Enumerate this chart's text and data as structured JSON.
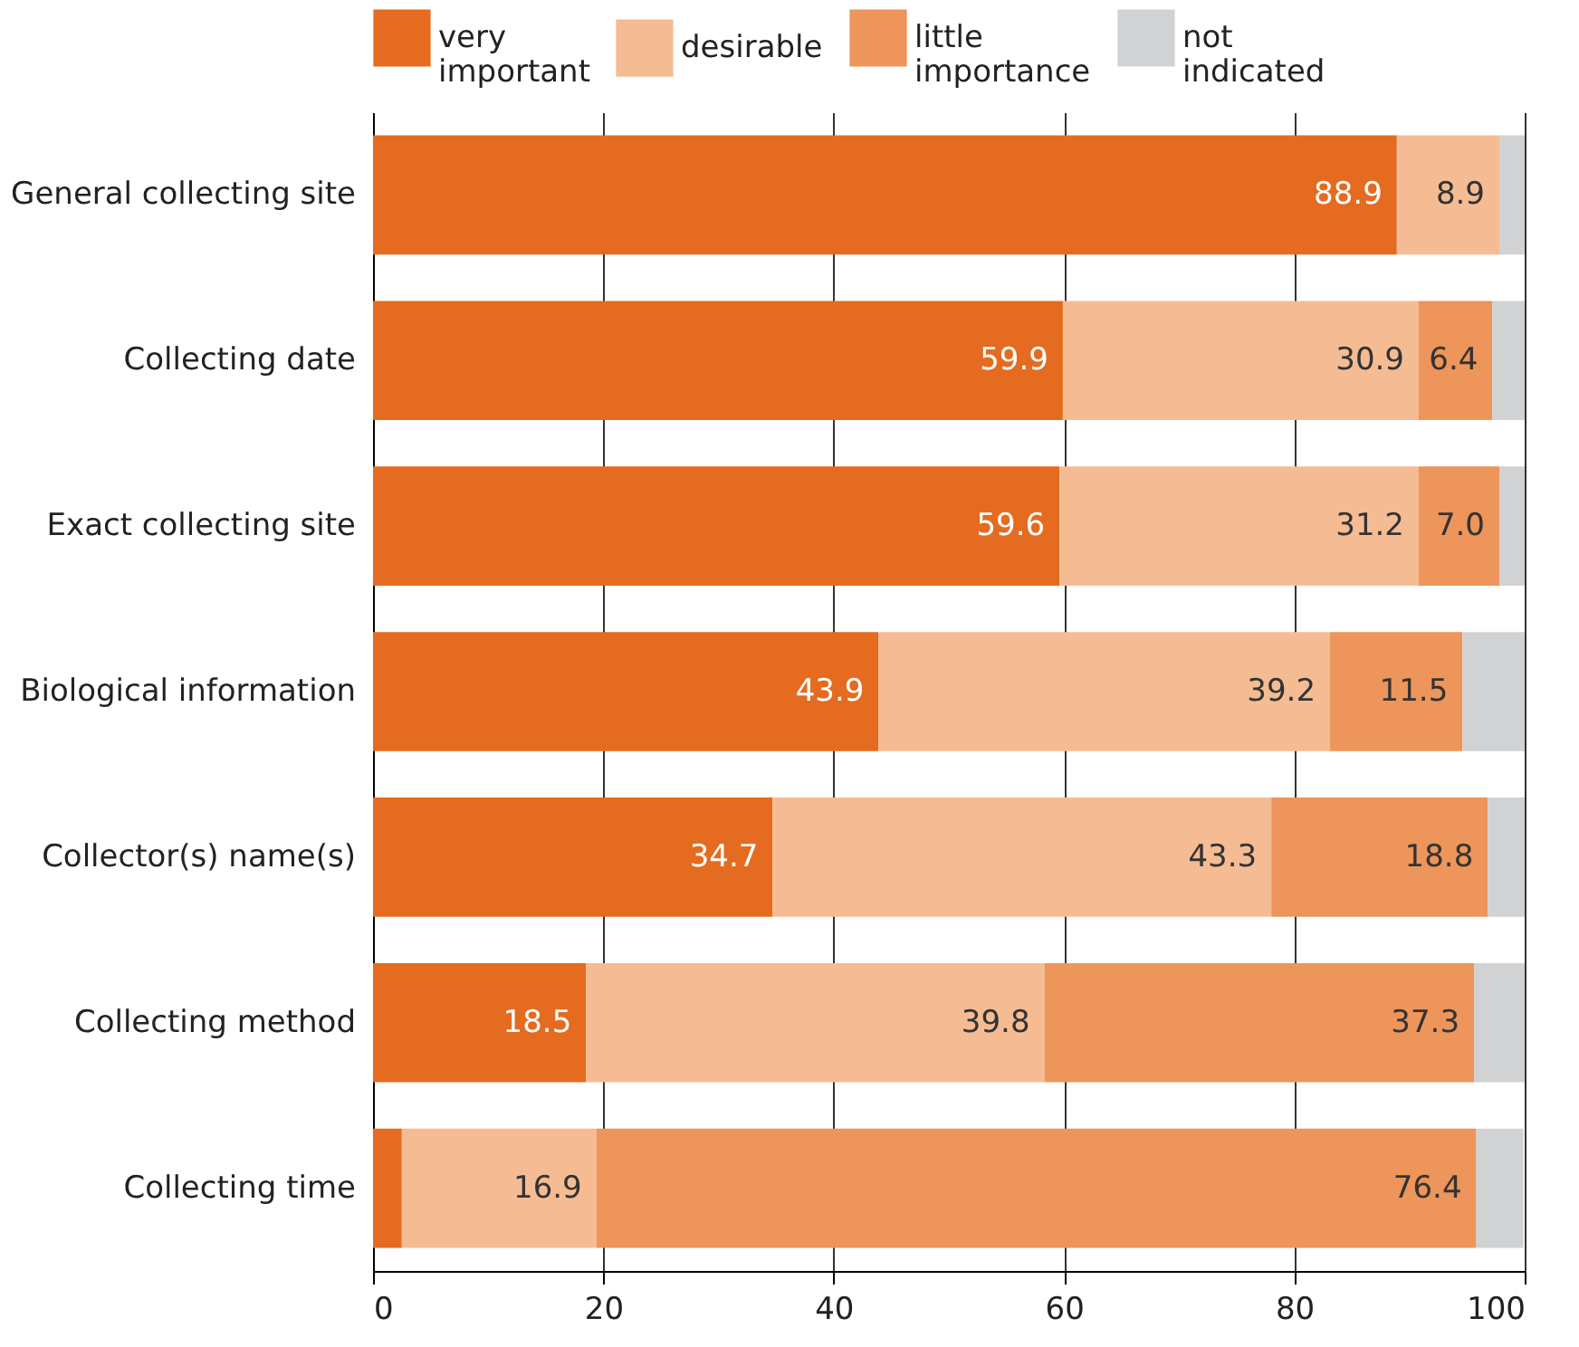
{
  "chart_data": {
    "type": "bar",
    "orientation": "horizontal",
    "stacked": true,
    "categories": [
      "General collecting site",
      "Collecting date",
      "Exact collecting site",
      "Biological information",
      "Collector(s) name(s)",
      "Collecting method",
      "Collecting time"
    ],
    "series": [
      {
        "name": "very important",
        "color": "#e46b1f",
        "values": [
          88.9,
          59.9,
          59.6,
          43.9,
          34.7,
          18.5,
          2.5
        ],
        "value_labels": [
          "88.9",
          "59.9",
          "59.6",
          "43.9",
          "34.7",
          "18.5",
          null
        ]
      },
      {
        "name": "desirable",
        "color": "#f5bc94",
        "values": [
          8.9,
          30.9,
          31.2,
          39.2,
          43.3,
          39.8,
          16.9
        ],
        "value_labels": [
          "8.9",
          "30.9",
          "31.2",
          "39.2",
          "43.3",
          "39.8",
          "16.9"
        ]
      },
      {
        "name": "little importance",
        "color": "#ed955a",
        "values": [
          0,
          6.4,
          7.0,
          11.5,
          18.8,
          37.3,
          76.4
        ],
        "value_labels": [
          null,
          "6.4",
          "7.0",
          "11.5",
          "18.8",
          "37.3",
          "76.4"
        ]
      },
      {
        "name": "not indicated",
        "color": "#d1d2d4",
        "values": [
          2.2,
          2.8,
          2.2,
          5.4,
          3.2,
          4.4,
          4.1
        ]
      }
    ],
    "xlim": [
      0,
      100
    ],
    "xticks": [
      0,
      20,
      40,
      60,
      80,
      100
    ],
    "grid": "x",
    "legend": "top left"
  }
}
